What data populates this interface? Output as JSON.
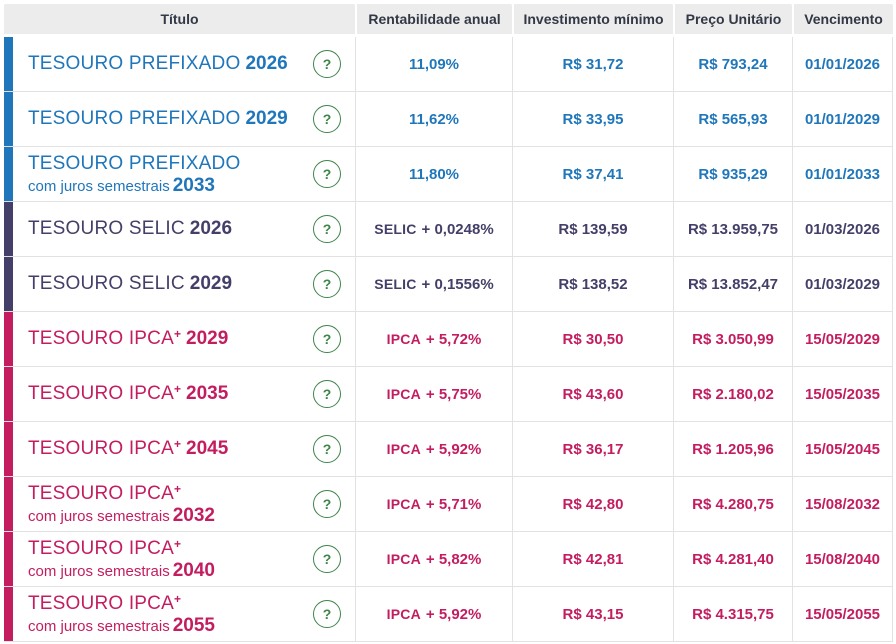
{
  "table": {
    "columns": [
      "Título",
      "Rentabilidade anual",
      "Investimento mínimo",
      "Preço Unitário",
      "Vencimento"
    ],
    "help_icon_glyph": "?",
    "rows": [
      {
        "family": "prefixado",
        "name": "TESOURO PREFIXADO",
        "sup": "",
        "year1": "2026",
        "line2": "",
        "year2": "",
        "rate_label": "",
        "rate_value": "11,09%",
        "min_investment": "R$ 31,72",
        "unit_price": "R$ 793,24",
        "maturity": "01/01/2026"
      },
      {
        "family": "prefixado",
        "name": "TESOURO PREFIXADO",
        "sup": "",
        "year1": "2029",
        "line2": "",
        "year2": "",
        "rate_label": "",
        "rate_value": "11,62%",
        "min_investment": "R$ 33,95",
        "unit_price": "R$ 565,93",
        "maturity": "01/01/2029"
      },
      {
        "family": "prefixado",
        "name": "TESOURO PREFIXADO",
        "sup": "",
        "year1": "",
        "line2": "com juros semestrais",
        "year2": "2033",
        "rate_label": "",
        "rate_value": "11,80%",
        "min_investment": "R$ 37,41",
        "unit_price": "R$ 935,29",
        "maturity": "01/01/2033"
      },
      {
        "family": "selic",
        "name": "TESOURO SELIC",
        "sup": "",
        "year1": "2026",
        "line2": "",
        "year2": "",
        "rate_label": "SELIC",
        "rate_value": "+ 0,0248%",
        "min_investment": "R$ 139,59",
        "unit_price": "R$ 13.959,75",
        "maturity": "01/03/2026"
      },
      {
        "family": "selic",
        "name": "TESOURO SELIC",
        "sup": "",
        "year1": "2029",
        "line2": "",
        "year2": "",
        "rate_label": "SELIC",
        "rate_value": "+ 0,1556%",
        "min_investment": "R$ 138,52",
        "unit_price": "R$ 13.852,47",
        "maturity": "01/03/2029"
      },
      {
        "family": "ipca",
        "name": "TESOURO IPCA",
        "sup": "+",
        "year1": "2029",
        "line2": "",
        "year2": "",
        "rate_label": "IPCA",
        "rate_value": "+ 5,72%",
        "min_investment": "R$ 30,50",
        "unit_price": "R$ 3.050,99",
        "maturity": "15/05/2029"
      },
      {
        "family": "ipca",
        "name": "TESOURO IPCA",
        "sup": "+",
        "year1": "2035",
        "line2": "",
        "year2": "",
        "rate_label": "IPCA",
        "rate_value": "+ 5,75%",
        "min_investment": "R$ 43,60",
        "unit_price": "R$ 2.180,02",
        "maturity": "15/05/2035"
      },
      {
        "family": "ipca",
        "name": "TESOURO IPCA",
        "sup": "+",
        "year1": "2045",
        "line2": "",
        "year2": "",
        "rate_label": "IPCA",
        "rate_value": "+ 5,92%",
        "min_investment": "R$ 36,17",
        "unit_price": "R$ 1.205,96",
        "maturity": "15/05/2045"
      },
      {
        "family": "ipca",
        "name": "TESOURO IPCA",
        "sup": "+",
        "year1": "",
        "line2": "com juros semestrais",
        "year2": "2032",
        "rate_label": "IPCA",
        "rate_value": "+ 5,71%",
        "min_investment": "R$ 42,80",
        "unit_price": "R$ 4.280,75",
        "maturity": "15/08/2032"
      },
      {
        "family": "ipca",
        "name": "TESOURO IPCA",
        "sup": "+",
        "year1": "",
        "line2": "com juros semestrais",
        "year2": "2040",
        "rate_label": "IPCA",
        "rate_value": "+ 5,82%",
        "min_investment": "R$ 42,81",
        "unit_price": "R$ 4.281,40",
        "maturity": "15/08/2040"
      },
      {
        "family": "ipca",
        "name": "TESOURO IPCA",
        "sup": "+",
        "year1": "",
        "line2": "com juros semestrais",
        "year2": "2055",
        "rate_label": "IPCA",
        "rate_value": "+ 5,92%",
        "min_investment": "R$ 43,15",
        "unit_price": "R$ 4.315,75",
        "maturity": "15/05/2055"
      }
    ]
  },
  "colors": {
    "prefixado": "#1f76ba",
    "selic": "#433f68",
    "ipca": "#c31d60",
    "help_green": "#3d8549",
    "header_bg": "#ececec",
    "header_text": "#323845",
    "border": "#e2e2e2"
  }
}
